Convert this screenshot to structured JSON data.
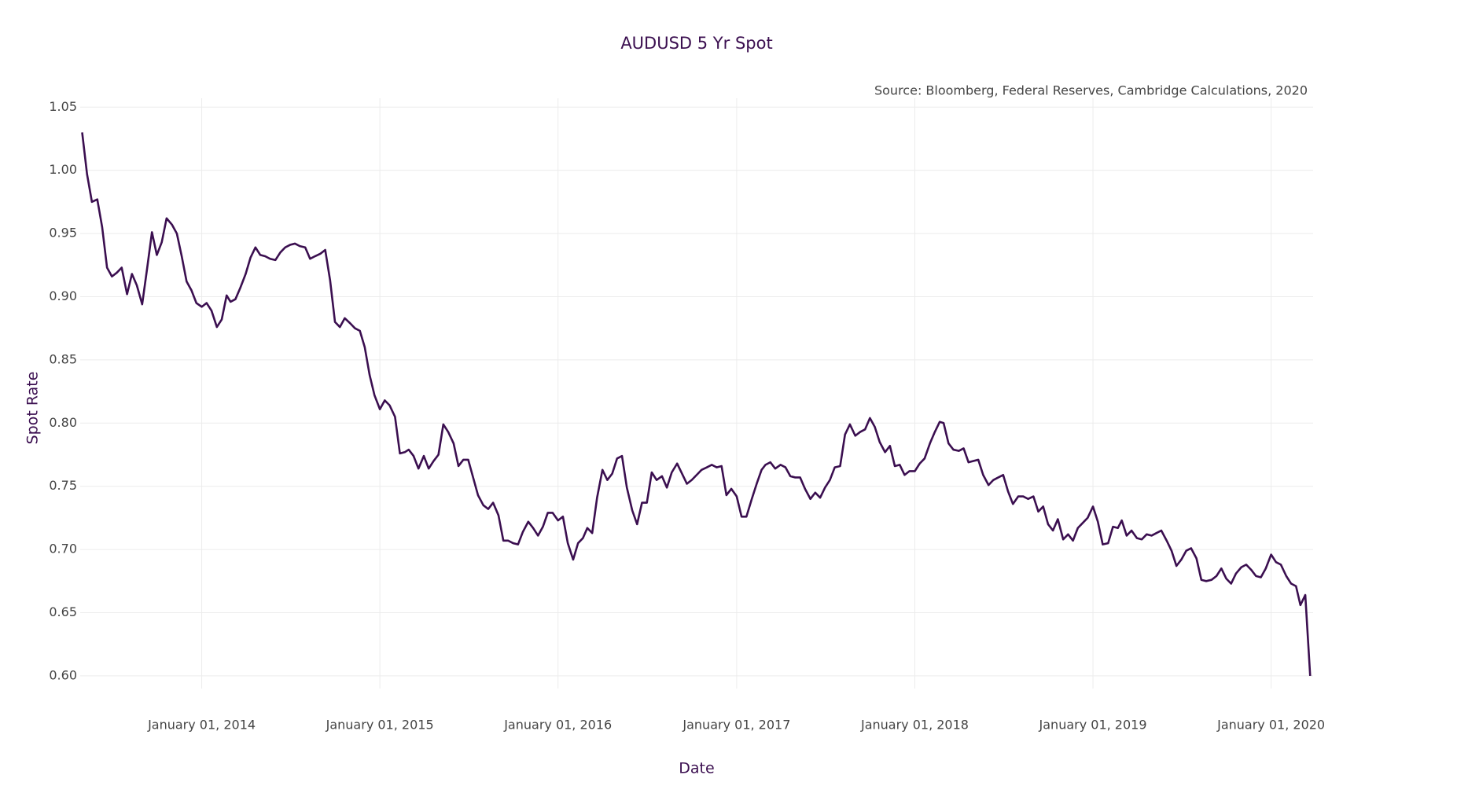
{
  "chart_data": {
    "type": "line",
    "title": "AUDUSD 5 Yr Spot",
    "source": "Source: Bloomberg, Federal Reserves, Cambridge Calculations, 2020",
    "x_label": "Date",
    "y_label": "Spot Rate",
    "color": "#3b0f50",
    "grid": true,
    "xlim": [
      "2013-04-27",
      "2020-03-27"
    ],
    "xticks": [
      {
        "value": "2014-01-01",
        "label": "January 01, 2014"
      },
      {
        "value": "2015-01-01",
        "label": "January 01, 2015"
      },
      {
        "value": "2016-01-01",
        "label": "January 01, 2016"
      },
      {
        "value": "2017-01-01",
        "label": "January 01, 2017"
      },
      {
        "value": "2018-01-01",
        "label": "January 01, 2018"
      },
      {
        "value": "2019-01-01",
        "label": "January 01, 2019"
      },
      {
        "value": "2020-01-01",
        "label": "January 01, 2020"
      }
    ],
    "ylim": [
      0.59,
      1.057
    ],
    "yticks": [
      {
        "value": 0.6,
        "label": "0.60"
      },
      0.65,
      {
        "value": 0.7,
        "label": "0.70"
      },
      0.75,
      {
        "value": 0.8,
        "label": "0.80"
      },
      0.85,
      {
        "value": 0.9,
        "label": "0.90"
      },
      0.95,
      {
        "value": 1,
        "label": "1.00"
      },
      1.05
    ],
    "x": [
      "2013-05-01",
      "2013-05-11",
      "2013-05-21",
      "2013-06-01",
      "2013-06-11",
      "2013-06-21",
      "2013-07-01",
      "2013-07-11",
      "2013-07-21",
      "2013-08-01",
      "2013-08-11",
      "2013-08-21",
      "2013-09-01",
      "2013-09-11",
      "2013-09-21",
      "2013-10-01",
      "2013-10-11",
      "2013-10-21",
      "2013-11-01",
      "2013-11-11",
      "2013-11-21",
      "2013-12-01",
      "2013-12-11",
      "2013-12-21",
      "2014-01-01",
      "2014-01-11",
      "2014-01-21",
      "2014-02-01",
      "2014-02-11",
      "2014-02-21",
      "2014-03-01",
      "2014-03-11",
      "2014-03-21",
      "2014-04-01",
      "2014-04-11",
      "2014-04-21",
      "2014-05-01",
      "2014-05-11",
      "2014-05-21",
      "2014-06-01",
      "2014-06-11",
      "2014-06-21",
      "2014-07-01",
      "2014-07-11",
      "2014-07-21",
      "2014-08-01",
      "2014-08-11",
      "2014-08-21",
      "2014-09-01",
      "2014-09-11",
      "2014-09-21",
      "2014-10-01",
      "2014-10-11",
      "2014-10-21",
      "2014-11-01",
      "2014-11-11",
      "2014-11-21",
      "2014-12-01",
      "2014-12-11",
      "2014-12-21",
      "2015-01-01",
      "2015-01-11",
      "2015-01-21",
      "2015-02-01",
      "2015-02-11",
      "2015-02-21",
      "2015-03-01",
      "2015-03-11",
      "2015-03-21",
      "2015-04-01",
      "2015-04-11",
      "2015-04-21",
      "2015-05-01",
      "2015-05-11",
      "2015-05-21",
      "2015-06-01",
      "2015-06-11",
      "2015-06-21",
      "2015-07-01",
      "2015-07-11",
      "2015-07-21",
      "2015-08-01",
      "2015-08-11",
      "2015-08-21",
      "2015-09-01",
      "2015-09-11",
      "2015-09-21",
      "2015-10-01",
      "2015-10-11",
      "2015-10-21",
      "2015-11-01",
      "2015-11-11",
      "2015-11-21",
      "2015-12-01",
      "2015-12-11",
      "2015-12-21",
      "2016-01-01",
      "2016-01-11",
      "2016-01-21",
      "2016-02-01",
      "2016-02-11",
      "2016-02-21",
      "2016-03-01",
      "2016-03-11",
      "2016-03-21",
      "2016-04-01",
      "2016-04-11",
      "2016-04-21",
      "2016-05-01",
      "2016-05-11",
      "2016-05-21",
      "2016-06-01",
      "2016-06-11",
      "2016-06-21",
      "2016-07-01",
      "2016-07-11",
      "2016-07-21",
      "2016-08-01",
      "2016-08-11",
      "2016-08-21",
      "2016-09-01",
      "2016-09-11",
      "2016-09-21",
      "2016-10-01",
      "2016-10-11",
      "2016-10-21",
      "2016-11-01",
      "2016-11-11",
      "2016-11-21",
      "2016-12-01",
      "2016-12-11",
      "2016-12-21",
      "2017-01-01",
      "2017-01-11",
      "2017-01-21",
      "2017-02-01",
      "2017-02-11",
      "2017-02-21",
      "2017-03-01",
      "2017-03-11",
      "2017-03-21",
      "2017-04-01",
      "2017-04-11",
      "2017-04-21",
      "2017-05-01",
      "2017-05-11",
      "2017-05-21",
      "2017-06-01",
      "2017-06-11",
      "2017-06-21",
      "2017-07-01",
      "2017-07-11",
      "2017-07-21",
      "2017-08-01",
      "2017-08-11",
      "2017-08-21",
      "2017-09-01",
      "2017-09-11",
      "2017-09-21",
      "2017-10-01",
      "2017-10-11",
      "2017-10-21",
      "2017-11-01",
      "2017-11-11",
      "2017-11-21",
      "2017-12-01",
      "2017-12-11",
      "2017-12-21",
      "2018-01-01",
      "2018-01-11",
      "2018-01-21",
      "2018-02-01",
      "2018-02-11",
      "2018-02-21",
      "2018-03-01",
      "2018-03-11",
      "2018-03-21",
      "2018-04-01",
      "2018-04-11",
      "2018-04-21",
      "2018-05-01",
      "2018-05-11",
      "2018-05-21",
      "2018-06-01",
      "2018-06-11",
      "2018-06-21",
      "2018-07-01",
      "2018-07-11",
      "2018-07-21",
      "2018-08-01",
      "2018-08-11",
      "2018-08-21",
      "2018-09-01",
      "2018-09-11",
      "2018-09-21",
      "2018-10-01",
      "2018-10-11",
      "2018-10-21",
      "2018-11-01",
      "2018-11-11",
      "2018-11-21",
      "2018-12-01",
      "2018-12-11",
      "2018-12-21",
      "2019-01-01",
      "2019-01-11",
      "2019-01-21",
      "2019-02-01",
      "2019-02-11",
      "2019-02-21",
      "2019-03-01",
      "2019-03-11",
      "2019-03-21",
      "2019-04-01",
      "2019-04-11",
      "2019-04-21",
      "2019-05-01",
      "2019-05-11",
      "2019-05-21",
      "2019-06-01",
      "2019-06-11",
      "2019-06-21",
      "2019-07-01",
      "2019-07-11",
      "2019-07-21",
      "2019-08-01",
      "2019-08-11",
      "2019-08-21",
      "2019-09-01",
      "2019-09-11",
      "2019-09-21",
      "2019-10-01",
      "2019-10-11",
      "2019-10-21",
      "2019-11-01",
      "2019-11-11",
      "2019-11-21",
      "2019-12-01",
      "2019-12-11",
      "2019-12-21",
      "2020-01-01",
      "2020-01-11",
      "2020-01-21",
      "2020-02-01",
      "2020-02-11",
      "2020-02-21",
      "2020-03-01",
      "2020-03-11",
      "2020-03-21"
    ],
    "values": [
      1.03,
      0.997,
      0.975,
      0.977,
      0.955,
      0.923,
      0.916,
      0.919,
      0.923,
      0.902,
      0.918,
      0.909,
      0.894,
      0.922,
      0.951,
      0.933,
      0.943,
      0.962,
      0.957,
      0.95,
      0.932,
      0.912,
      0.905,
      0.895,
      0.892,
      0.895,
      0.889,
      0.876,
      0.882,
      0.901,
      0.896,
      0.898,
      0.907,
      0.918,
      0.931,
      0.939,
      0.933,
      0.932,
      0.93,
      0.929,
      0.935,
      0.939,
      0.941,
      0.942,
      0.94,
      0.939,
      0.93,
      0.932,
      0.934,
      0.937,
      0.913,
      0.88,
      0.876,
      0.883,
      0.879,
      0.875,
      0.873,
      0.86,
      0.838,
      0.822,
      0.811,
      0.818,
      0.814,
      0.805,
      0.776,
      0.777,
      0.779,
      0.774,
      0.764,
      0.774,
      0.764,
      0.77,
      0.775,
      0.799,
      0.793,
      0.784,
      0.766,
      0.771,
      0.771,
      0.757,
      0.743,
      0.735,
      0.732,
      0.737,
      0.727,
      0.707,
      0.707,
      0.705,
      0.704,
      0.714,
      0.722,
      0.717,
      0.711,
      0.718,
      0.729,
      0.729,
      0.723,
      0.726,
      0.705,
      0.692,
      0.705,
      0.709,
      0.717,
      0.713,
      0.741,
      0.763,
      0.755,
      0.76,
      0.772,
      0.774,
      0.749,
      0.731,
      0.72,
      0.737,
      0.737,
      0.761,
      0.755,
      0.758,
      0.749,
      0.761,
      0.768,
      0.76,
      0.752,
      0.755,
      0.759,
      0.763,
      0.765,
      0.767,
      0.765,
      0.766,
      0.743,
      0.748,
      0.742,
      0.726,
      0.726,
      0.74,
      0.752,
      0.763,
      0.767,
      0.769,
      0.764,
      0.767,
      0.765,
      0.758,
      0.757,
      0.757,
      0.748,
      0.74,
      0.745,
      0.741,
      0.749,
      0.755,
      0.765,
      0.766,
      0.791,
      0.799,
      0.79,
      0.793,
      0.795,
      0.804,
      0.797,
      0.785,
      0.777,
      0.782,
      0.766,
      0.767,
      0.759,
      0.762,
      0.762,
      0.768,
      0.772,
      0.784,
      0.793,
      0.801,
      0.8,
      0.784,
      0.779,
      0.778,
      0.78,
      0.769,
      0.77,
      0.771,
      0.759,
      0.751,
      0.755,
      0.757,
      0.759,
      0.746,
      0.736,
      0.742,
      0.742,
      0.74,
      0.742,
      0.73,
      0.734,
      0.72,
      0.715,
      0.724,
      0.708,
      0.712,
      0.707,
      0.717,
      0.721,
      0.725,
      0.734,
      0.722,
      0.704,
      0.705,
      0.718,
      0.717,
      0.723,
      0.711,
      0.715,
      0.709,
      0.708,
      0.712,
      0.711,
      0.713,
      0.715,
      0.707,
      0.699,
      0.687,
      0.692,
      0.699,
      0.701,
      0.693,
      0.676,
      0.675,
      0.676,
      0.679,
      0.685,
      0.677,
      0.673,
      0.681,
      0.686,
      0.688,
      0.684,
      0.679,
      0.678,
      0.685,
      0.696,
      0.69,
      0.688,
      0.679,
      0.673,
      0.671,
      0.656,
      0.664,
      0.6
    ]
  }
}
